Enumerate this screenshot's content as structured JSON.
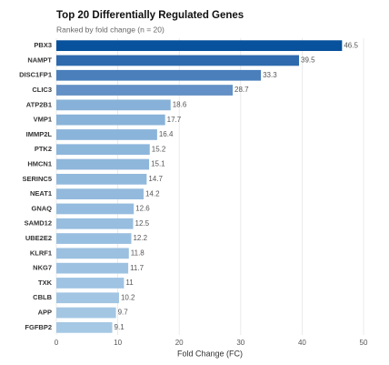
{
  "chart_data": {
    "type": "bar",
    "orientation": "horizontal",
    "title": "Top 20 Differentially Regulated Genes",
    "subtitle": "Ranked by fold change (n = 20)",
    "x_label": "Fold Change (FC)",
    "categories": [
      "PBX3",
      "NAMPT",
      "DISC1FP1",
      "CLIC3",
      "ATP2B1",
      "VMP1",
      "IMMP2L",
      "PTK2",
      "HMCN1",
      "SERINC5",
      "NEAT1",
      "GNAQ",
      "SAMD12",
      "UBE2E2",
      "KLRF1",
      "NKG7",
      "TXK",
      "CBLB",
      "APP",
      "FGFBP2"
    ],
    "values": [
      46.5,
      39.5,
      33.3,
      28.7,
      18.6,
      17.7,
      16.4,
      15.2,
      15.1,
      14.7,
      14.2,
      12.6,
      12.5,
      12.2,
      11.8,
      11.7,
      11,
      10.2,
      9.7,
      9.1
    ],
    "colors": [
      "#08519c",
      "#2e6aad",
      "#4a7fbc",
      "#6390c6",
      "#87b1d8",
      "#89b3d9",
      "#8bb4da",
      "#8db6db",
      "#8fb7db",
      "#91b9dc",
      "#93badd",
      "#95bcde",
      "#97bddf",
      "#99bfe0",
      "#9bc0e0",
      "#9dc2e1",
      "#9fc3e2",
      "#a1c5e3",
      "#a3c6e3",
      "#a5c8e4"
    ],
    "xlim": [
      0,
      50
    ],
    "xticks": [
      0,
      10,
      20,
      30,
      40,
      50
    ],
    "grid": true
  }
}
